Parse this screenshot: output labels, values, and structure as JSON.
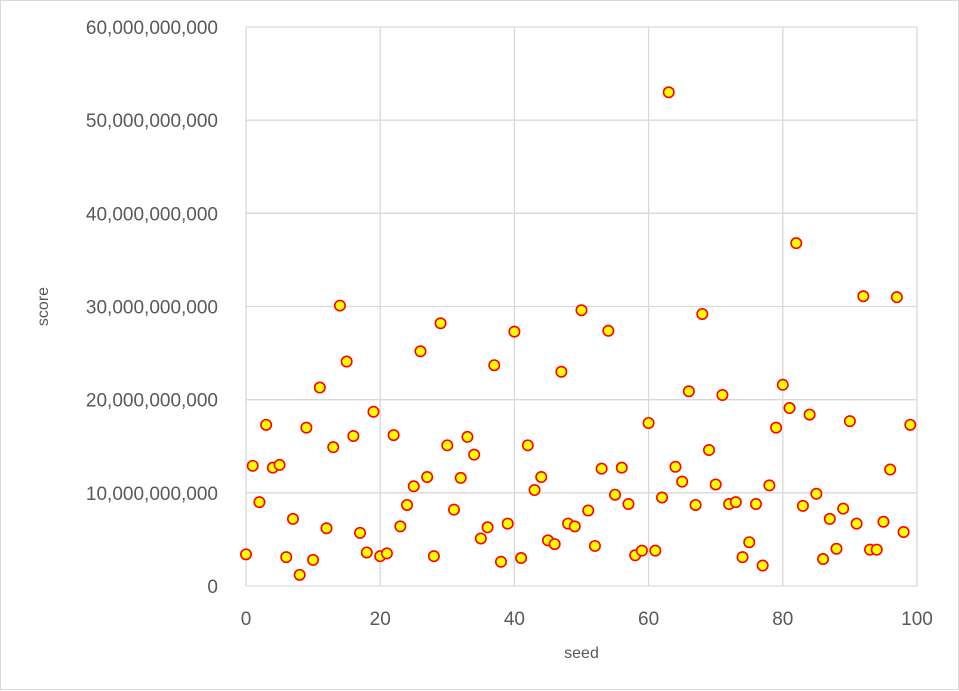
{
  "chart_data": {
    "type": "scatter",
    "title": "",
    "xlabel": "seed",
    "ylabel": "score",
    "xlim": [
      0,
      100
    ],
    "ylim": [
      0,
      60000000000
    ],
    "x_ticks": [
      0,
      20,
      40,
      60,
      80,
      100
    ],
    "x_tick_labels": [
      "0",
      "20",
      "40",
      "60",
      "80",
      "100"
    ],
    "y_ticks": [
      0,
      10000000000,
      20000000000,
      30000000000,
      40000000000,
      50000000000,
      60000000000
    ],
    "y_tick_labels": [
      "0",
      "10,000,000,000",
      "20,000,000,000",
      "30,000,000,000",
      "40,000,000,000",
      "50,000,000,000",
      "60,000,000,000"
    ],
    "grid": true,
    "legend": "none",
    "colors": {
      "marker_fill": "#FFFF00",
      "marker_stroke": "#FF0000",
      "grid": "#D9D9D9",
      "text": "#595959"
    },
    "series": [
      {
        "x": [
          0,
          1,
          2,
          3,
          4,
          5,
          6,
          7,
          8,
          9,
          10,
          11,
          12,
          13,
          14,
          15,
          16,
          17,
          18,
          19,
          20,
          21,
          22,
          23,
          24,
          25,
          26,
          27,
          28,
          29,
          30,
          31,
          32,
          33,
          34,
          35,
          36,
          37,
          38,
          39,
          40,
          41,
          42,
          43,
          44,
          45,
          46,
          47,
          48,
          49,
          50,
          51,
          52,
          53,
          54,
          55,
          56,
          57,
          58,
          59,
          60,
          61,
          62,
          63,
          64,
          65,
          66,
          67,
          68,
          69,
          70,
          71,
          72,
          73,
          74,
          75,
          76,
          77,
          78,
          79,
          80,
          81,
          82,
          83,
          84,
          85,
          86,
          87,
          88,
          89,
          90,
          91,
          92,
          93,
          94,
          95,
          96,
          97,
          98,
          99
        ],
        "y": [
          3400000000,
          12900000000,
          9000000000,
          17300000000,
          12700000000,
          13000000000,
          3100000000,
          7200000000,
          1200000000,
          17000000000,
          2800000000,
          21300000000,
          6200000000,
          14900000000,
          30100000000,
          24100000000,
          16100000000,
          5700000000,
          3600000000,
          18700000000,
          3200000000,
          3500000000,
          16200000000,
          6400000000,
          8700000000,
          10700000000,
          25200000000,
          11700000000,
          3200000000,
          28200000000,
          15100000000,
          8200000000,
          11600000000,
          16000000000,
          14100000000,
          5100000000,
          6300000000,
          23700000000,
          2600000000,
          6700000000,
          27300000000,
          3000000000,
          15100000000,
          10300000000,
          11700000000,
          4900000000,
          4500000000,
          23000000000,
          6700000000,
          6400000000,
          29600000000,
          8100000000,
          4300000000,
          12600000000,
          27400000000,
          9800000000,
          12700000000,
          8800000000,
          3300000000,
          3800000000,
          17500000000,
          3800000000,
          9500000000,
          53000000000,
          12800000000,
          11200000000,
          20900000000,
          8700000000,
          29200000000,
          14600000000,
          10900000000,
          20500000000,
          8800000000,
          9000000000,
          3100000000,
          4700000000,
          8800000000,
          2200000000,
          10800000000,
          17000000000,
          21600000000,
          19100000000,
          36800000000,
          8600000000,
          18400000000,
          9900000000,
          2900000000,
          7200000000,
          4000000000,
          8300000000,
          17700000000,
          6700000000,
          31100000000,
          3900000000,
          3900000000,
          6900000000,
          12500000000,
          31000000000,
          5800000000,
          17300000000
        ]
      }
    ]
  }
}
